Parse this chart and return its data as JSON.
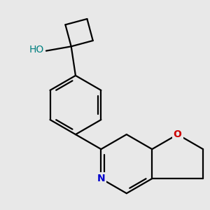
{
  "background_color": "#e8e8e8",
  "bond_color": "#000000",
  "N_color": "#0000cc",
  "O_color": "#cc0000",
  "HO_color": "#008080",
  "line_width": 1.6,
  "font_size": 10,
  "figsize": [
    3.0,
    3.0
  ],
  "dpi": 100,
  "xlim": [
    -2.5,
    4.5
  ],
  "ylim": [
    -3.5,
    3.5
  ]
}
